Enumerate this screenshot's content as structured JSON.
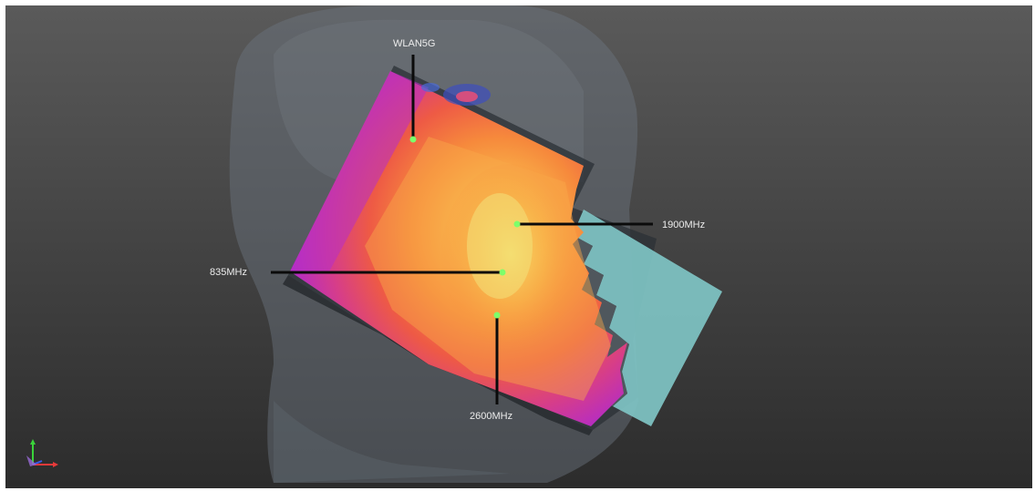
{
  "viewer": {
    "background_top": "#5a5a5a",
    "background_bottom": "#2c2c2c"
  },
  "probes": [
    {
      "name": "WLAN5G",
      "marker_color": "#7dff6a"
    },
    {
      "name": "1900MHz",
      "marker_color": "#7dff6a"
    },
    {
      "name": "835MHz",
      "marker_color": "#7dff6a"
    },
    {
      "name": "2600MHz",
      "marker_color": "#7dff6a"
    }
  ],
  "sar_colormap": [
    "#b52cc4",
    "#d63d8a",
    "#ee5a45",
    "#f68a3c",
    "#f9b54a",
    "#f5d35a"
  ],
  "axes_triad": {
    "x_color": "#e83a3a",
    "y_color": "#3ad23a",
    "z_color": "#3a5ae8"
  }
}
